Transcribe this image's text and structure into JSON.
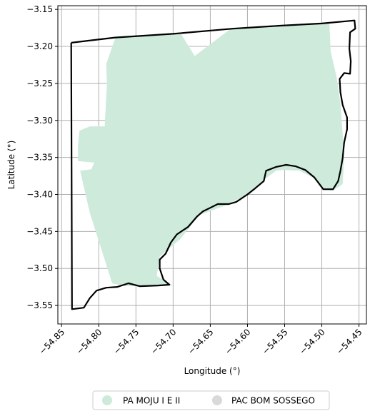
{
  "chart_data": {
    "type": "map",
    "xlabel": "Longitude (°)",
    "ylabel": "Latitude (°)",
    "xlim": [
      -54.855,
      -54.44
    ],
    "ylim": [
      -3.575,
      -3.145
    ],
    "x_ticks": [
      -54.85,
      -54.8,
      -54.75,
      -54.7,
      -54.65,
      -54.6,
      -54.55,
      -54.5,
      -54.45
    ],
    "x_tick_labels": [
      "−54.85",
      "−54.80",
      "−54.75",
      "−54.70",
      "−54.65",
      "−54.60",
      "−54.55",
      "−54.50",
      "−54.45"
    ],
    "y_ticks": [
      -3.15,
      -3.2,
      -3.25,
      -3.3,
      -3.35,
      -3.4,
      -3.45,
      -3.5,
      -3.55
    ],
    "y_tick_labels": [
      "−3.15",
      "−3.20",
      "−3.25",
      "−3.30",
      "−3.35",
      "−3.40",
      "−3.45",
      "−3.50",
      "−3.55"
    ],
    "grid": true,
    "legend_position": "bottom-center",
    "legend": [
      {
        "label": "PA MOJU I E II",
        "color": "#cdeadb"
      },
      {
        "label": "PAC BOM SOSSEGO",
        "color": "#d9d9d9"
      }
    ],
    "layers": [
      {
        "name": "PA MOJU I E II",
        "kind": "polygon",
        "fill": "#cdeadb",
        "coordinates": [
          [
            -54.778,
            -3.189
          ],
          [
            -54.72,
            -3.184
          ],
          [
            -54.7,
            -3.183
          ],
          [
            -54.69,
            -3.182
          ],
          [
            -54.671,
            -3.213
          ],
          [
            -54.621,
            -3.175
          ],
          [
            -54.555,
            -3.172
          ],
          [
            -54.49,
            -3.168
          ],
          [
            -54.488,
            -3.207
          ],
          [
            -54.48,
            -3.242
          ],
          [
            -54.475,
            -3.278
          ],
          [
            -54.472,
            -3.318
          ],
          [
            -54.47,
            -3.35
          ],
          [
            -54.472,
            -3.386
          ],
          [
            -54.485,
            -3.395
          ],
          [
            -54.498,
            -3.393
          ],
          [
            -54.512,
            -3.377
          ],
          [
            -54.53,
            -3.368
          ],
          [
            -54.55,
            -3.367
          ],
          [
            -54.568,
            -3.368
          ],
          [
            -54.57,
            -3.34
          ],
          [
            -54.58,
            -3.333
          ],
          [
            -54.64,
            -3.332
          ],
          [
            -54.66,
            -3.339
          ],
          [
            -54.679,
            -3.342
          ],
          [
            -54.68,
            -3.33
          ],
          [
            -54.683,
            -3.29
          ],
          [
            -54.67,
            -3.27
          ],
          [
            -54.661,
            -3.285
          ],
          [
            -54.633,
            -3.289
          ],
          [
            -54.605,
            -3.292
          ],
          [
            -54.585,
            -3.28
          ],
          [
            -54.563,
            -3.265
          ],
          [
            -54.558,
            -3.255
          ],
          [
            -54.549,
            -3.255
          ],
          [
            -54.533,
            -3.268
          ],
          [
            -54.53,
            -3.29
          ],
          [
            -54.525,
            -3.32
          ],
          [
            -54.52,
            -3.34
          ],
          [
            -54.545,
            -3.36
          ],
          [
            -54.56,
            -3.367
          ],
          [
            -54.575,
            -3.378
          ],
          [
            -54.6,
            -3.4
          ],
          [
            -54.63,
            -3.415
          ],
          [
            -54.665,
            -3.428
          ],
          [
            -54.69,
            -3.46
          ],
          [
            -54.718,
            -3.484
          ],
          [
            -54.722,
            -3.51
          ],
          [
            -54.7,
            -3.523
          ],
          [
            -54.73,
            -3.523
          ],
          [
            -54.765,
            -3.524
          ],
          [
            -54.782,
            -3.52
          ],
          [
            -54.8,
            -3.463
          ],
          [
            -54.812,
            -3.425
          ],
          [
            -54.825,
            -3.368
          ],
          [
            -54.81,
            -3.366
          ],
          [
            -54.806,
            -3.357
          ],
          [
            -54.828,
            -3.355
          ],
          [
            -54.828,
            -3.334
          ],
          [
            -54.826,
            -3.314
          ],
          [
            -54.812,
            -3.308
          ],
          [
            -54.792,
            -3.308
          ],
          [
            -54.789,
            -3.25
          ],
          [
            -54.79,
            -3.224
          ],
          [
            -54.778,
            -3.189
          ]
        ]
      },
      {
        "name": "PAC BOM SOSSEGO",
        "kind": "outline",
        "stroke": "#000000",
        "coordinates": [
          [
            -54.837,
            -3.195
          ],
          [
            -54.778,
            -3.188
          ],
          [
            -54.7,
            -3.183
          ],
          [
            -54.62,
            -3.176
          ],
          [
            -54.556,
            -3.172
          ],
          [
            -54.5,
            -3.169
          ],
          [
            -54.456,
            -3.165
          ],
          [
            -54.455,
            -3.176
          ],
          [
            -54.462,
            -3.181
          ],
          [
            -54.463,
            -3.203
          ],
          [
            -54.461,
            -3.22
          ],
          [
            -54.462,
            -3.237
          ],
          [
            -54.47,
            -3.236
          ],
          [
            -54.476,
            -3.244
          ],
          [
            -54.475,
            -3.262
          ],
          [
            -54.472,
            -3.279
          ],
          [
            -54.466,
            -3.296
          ],
          [
            -54.466,
            -3.312
          ],
          [
            -54.47,
            -3.33
          ],
          [
            -54.472,
            -3.351
          ],
          [
            -54.475,
            -3.368
          ],
          [
            -54.478,
            -3.382
          ],
          [
            -54.485,
            -3.393
          ],
          [
            -54.498,
            -3.393
          ],
          [
            -54.51,
            -3.377
          ],
          [
            -54.522,
            -3.367
          ],
          [
            -54.535,
            -3.362
          ],
          [
            -54.548,
            -3.36
          ],
          [
            -54.562,
            -3.363
          ],
          [
            -54.575,
            -3.368
          ],
          [
            -54.578,
            -3.382
          ],
          [
            -54.59,
            -3.392
          ],
          [
            -54.6,
            -3.4
          ],
          [
            -54.615,
            -3.41
          ],
          [
            -54.625,
            -3.413
          ],
          [
            -54.64,
            -3.413
          ],
          [
            -54.65,
            -3.418
          ],
          [
            -54.66,
            -3.423
          ],
          [
            -54.668,
            -3.43
          ],
          [
            -54.68,
            -3.444
          ],
          [
            -54.695,
            -3.454
          ],
          [
            -54.703,
            -3.465
          ],
          [
            -54.71,
            -3.48
          ],
          [
            -54.718,
            -3.488
          ],
          [
            -54.718,
            -3.5
          ],
          [
            -54.713,
            -3.515
          ],
          [
            -54.705,
            -3.522
          ],
          [
            -54.72,
            -3.523
          ],
          [
            -54.745,
            -3.524
          ],
          [
            -54.76,
            -3.52
          ],
          [
            -54.775,
            -3.525
          ],
          [
            -54.79,
            -3.526
          ],
          [
            -54.803,
            -3.53
          ],
          [
            -54.812,
            -3.54
          ],
          [
            -54.82,
            -3.553
          ],
          [
            -54.836,
            -3.555
          ],
          [
            -54.837,
            -3.195
          ]
        ]
      }
    ]
  }
}
